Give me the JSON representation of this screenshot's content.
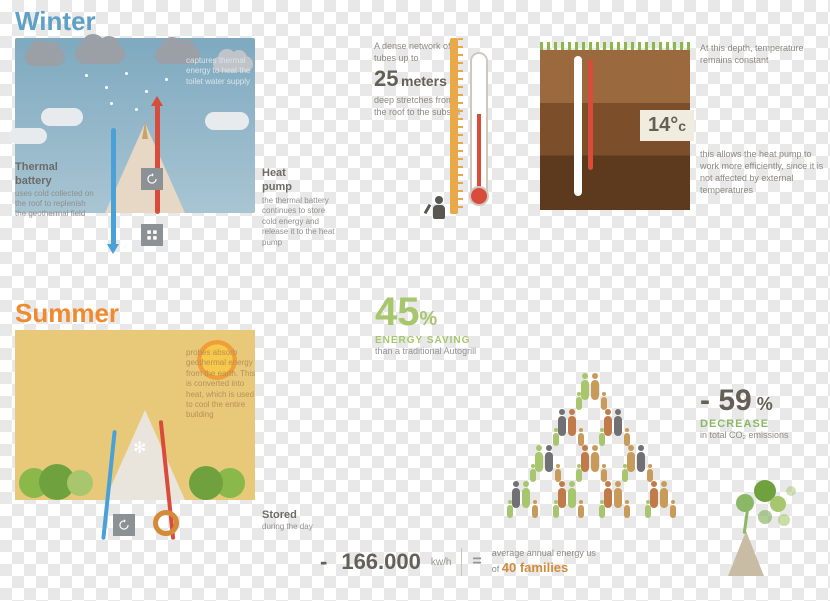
{
  "colors": {
    "winter_title": "#5fa0c7",
    "summer_title": "#ef8a2f",
    "winter_sky": "#7ea9bf",
    "summer_bg": "#e8c97a",
    "blue_pipe": "#4aa1d8",
    "red_pipe": "#d94b3a",
    "ruler": "#e9a94a",
    "soil_layers": [
      "#9a6a3e",
      "#7c4f2a",
      "#5d3a1d"
    ],
    "green_accent": "#a7c66d",
    "green_dark": "#8bb867",
    "text_grey": "#8d8a84",
    "dark_grey": "#656056",
    "orange_accent": "#d28c3c",
    "family_colors": [
      "#717074",
      "#c99b5a",
      "#c17b4a",
      "#a8c66d"
    ]
  },
  "typography": {
    "title_size": 26,
    "body_size": 9,
    "bignum_size": 40
  },
  "winter": {
    "title": "Winter",
    "thermal_battery": {
      "title": "Thermal battery",
      "text": "uses cold collected on the roof to replenish the geothermal field"
    },
    "heat_pump": {
      "title": "Heat pump"
    },
    "caption_top": "captures thermal energy to heat the toilet water supply",
    "caption_right": "the thermal battery continues to store cold energy and release it to the heat pump"
  },
  "summer": {
    "title": "Summer",
    "caption_top": "probes absorb geothermal energy from the earth. This is converted into heat, which is used to cool the entire building",
    "stored": {
      "title": "Stored",
      "sub": "during the day"
    }
  },
  "tubes": {
    "lead": "A dense network of tubes up to",
    "value": "25",
    "unit": "meters",
    "trail": "deep stretches from the roof to the subsoil"
  },
  "depth": {
    "lead": "At this depth, temperature remains constant",
    "value": "14°",
    "unit": "c",
    "trail": "this allows the heat pump to work more efficiently, since it is not affected by external temperatures"
  },
  "stat45": {
    "value": "45",
    "pct": "%",
    "label": "ENERGY SAVING",
    "sub": "than a traditional Autogrill"
  },
  "stat59": {
    "prefix": "- ",
    "value": "59",
    "pct": " %",
    "label": "DECREASE",
    "sub": "in total CO₂ emissions"
  },
  "families_block": {
    "rows": [
      1,
      2,
      3,
      4
    ]
  },
  "equation": {
    "prefix": "- ",
    "value": "166.000",
    "unit": " kw/h",
    "eq": "=",
    "text_top": "average annual energy us",
    "text_bot_pre": "of ",
    "families": "40 families"
  }
}
